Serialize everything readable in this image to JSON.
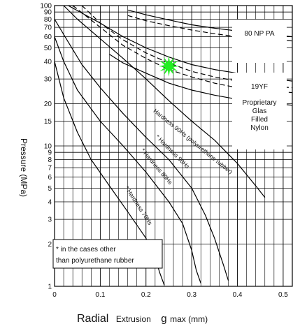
{
  "chart_data": {
    "type": "line",
    "x_title_words": [
      "Radial",
      "Extrusion",
      "g",
      "max (mm)"
    ],
    "ylabel": "Pressure (MPa)",
    "xlim": [
      0,
      0.52
    ],
    "ylim": [
      1,
      100
    ],
    "y_scale": "log",
    "grid": true,
    "x_ticks": [
      0,
      0.1,
      0.2,
      0.3,
      0.4,
      0.5
    ],
    "y_ticks": [
      1,
      2,
      3,
      4,
      5,
      6,
      7,
      8,
      9,
      10,
      15,
      20,
      30,
      40,
      50,
      60,
      70,
      80,
      90,
      100
    ],
    "series": [
      {
        "name": "Hardness 90Hs (polyurethane rubber)",
        "style": "solid",
        "x": [
          0.02,
          0.05,
          0.1,
          0.15,
          0.2,
          0.25,
          0.3,
          0.35,
          0.4,
          0.44,
          0.46
        ],
        "y": [
          100,
          80,
          58,
          42,
          30,
          21,
          15,
          11,
          7.5,
          5.2,
          4.3
        ]
      },
      {
        "name": "* Hardness 90Hs",
        "style": "solid",
        "x": [
          0.0,
          0.03,
          0.06,
          0.1,
          0.15,
          0.2,
          0.25,
          0.3,
          0.33,
          0.35,
          0.37,
          0.38
        ],
        "y": [
          80,
          55,
          38,
          26,
          17,
          11.5,
          8,
          5,
          3.2,
          2.2,
          1.4,
          1.1
        ]
      },
      {
        "name": "* Hardness 80Hs",
        "style": "solid",
        "x": [
          0.0,
          0.02,
          0.05,
          0.1,
          0.15,
          0.2,
          0.25,
          0.28,
          0.3,
          0.31,
          0.32
        ],
        "y": [
          60,
          40,
          25,
          15,
          10,
          6.5,
          4,
          2.8,
          1.8,
          1.3,
          1.05
        ]
      },
      {
        "name": "* Hardness 70Hs",
        "style": "solid",
        "x": [
          0.0,
          0.02,
          0.05,
          0.08,
          0.12,
          0.16,
          0.2,
          0.22,
          0.23,
          0.24
        ],
        "y": [
          40,
          22,
          12.5,
          8,
          5.2,
          3.4,
          2.2,
          1.6,
          1.25,
          1.02
        ]
      },
      {
        "name": "80 NP PA",
        "style": "dashed",
        "x": [
          0.16,
          0.2,
          0.25,
          0.3,
          0.35,
          0.4,
          0.45,
          0.52
        ],
        "y": [
          85,
          78,
          72,
          67,
          63,
          60,
          58,
          56
        ]
      },
      {
        "name": "80 NP PA",
        "style": "solid",
        "x": [
          0.16,
          0.2,
          0.25,
          0.3,
          0.35,
          0.4,
          0.45,
          0.52
        ],
        "y": [
          93,
          86,
          79,
          73,
          69,
          66,
          63,
          60
        ]
      },
      {
        "name": "19YF",
        "style": "dashed",
        "x": [
          0.04,
          0.1,
          0.15,
          0.2,
          0.25,
          0.3,
          0.35,
          0.4,
          0.45,
          0.52
        ],
        "y": [
          100,
          70,
          52,
          42,
          35,
          31,
          28,
          26,
          25,
          24
        ]
      },
      {
        "name": "19YF",
        "style": "dashed",
        "x": [
          0.06,
          0.1,
          0.15,
          0.2,
          0.25,
          0.3,
          0.35,
          0.4,
          0.45,
          0.52
        ],
        "y": [
          100,
          75,
          57,
          46,
          39,
          34,
          31,
          29,
          27,
          26
        ]
      },
      {
        "name": "19YF",
        "style": "solid",
        "x": [
          0.03,
          0.1,
          0.15,
          0.2,
          0.25,
          0.3,
          0.35,
          0.4,
          0.45,
          0.52
        ],
        "y": [
          100,
          75,
          60,
          50,
          43,
          38,
          35,
          33,
          31,
          29
        ]
      },
      {
        "name": "19YF",
        "style": "solid",
        "x": [
          0.12,
          0.15,
          0.2,
          0.25,
          0.3,
          0.35,
          0.4,
          0.45,
          0.52
        ],
        "y": [
          45,
          39,
          33,
          28,
          25,
          23,
          21.5,
          20.5,
          19.5
        ]
      }
    ],
    "annotations": {
      "curve_labels": [
        {
          "text": "Hardness 90Hs (polyurethane rubber)",
          "x": 0.3,
          "y": 10.5
        },
        {
          "text": "* Hardness 90Hs",
          "x": 0.255,
          "y": 8.9
        },
        {
          "text": "* Hardness 80Hs",
          "x": 0.22,
          "y": 7.0
        },
        {
          "text": "* Hardness 70Hs",
          "x": 0.18,
          "y": 3.7
        }
      ],
      "marker": {
        "shape": "star",
        "color": "#22ee22",
        "x": 0.25,
        "y": 37
      },
      "note_lines": [
        "* in the cases other",
        "than polyurethane rubber"
      ],
      "side_labels": {
        "upper": "80 NP PA",
        "lower_lines": [
          "19YF",
          "Proprietary",
          "Glas",
          "Filled",
          "Nylon"
        ]
      }
    }
  }
}
